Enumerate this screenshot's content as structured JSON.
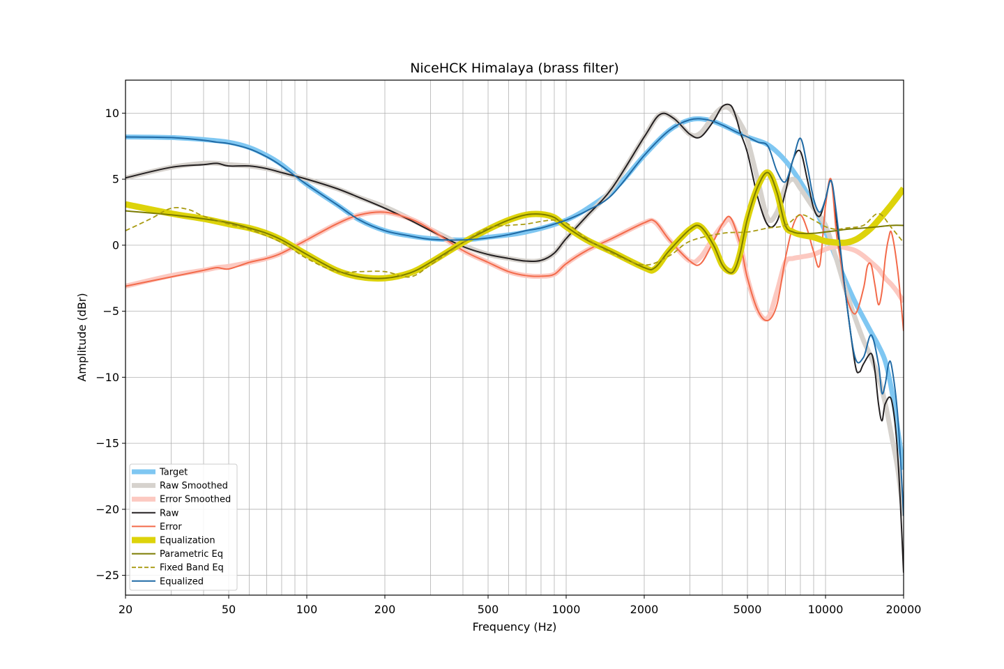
{
  "chart_data": {
    "type": "line",
    "title": "NiceHCK Himalaya (brass filter)",
    "xlabel": "Frequency (Hz)",
    "ylabel": "Amplitude (dBr)",
    "x_scale": "log",
    "xlim": [
      20,
      20000
    ],
    "ylim": [
      -26.5,
      12.5
    ],
    "grid": true,
    "legend_position": "lower-left",
    "x_ticks": [
      {
        "value": 20,
        "label": "20"
      },
      {
        "value": 50,
        "label": "50"
      },
      {
        "value": 100,
        "label": "100"
      },
      {
        "value": 200,
        "label": "200"
      },
      {
        "value": 500,
        "label": "500"
      },
      {
        "value": 1000,
        "label": "1000"
      },
      {
        "value": 2000,
        "label": "2000"
      },
      {
        "value": 5000,
        "label": "5000"
      },
      {
        "value": 10000,
        "label": "10000"
      },
      {
        "value": 20000,
        "label": "20000"
      }
    ],
    "y_ticks": [
      {
        "value": 10,
        "label": "10"
      },
      {
        "value": 5,
        "label": "5"
      },
      {
        "value": 0,
        "label": "0"
      },
      {
        "value": -5,
        "label": "−5"
      },
      {
        "value": -10,
        "label": "−10"
      },
      {
        "value": -15,
        "label": "−15"
      },
      {
        "value": -20,
        "label": "−20"
      },
      {
        "value": -25,
        "label": "−25"
      }
    ],
    "series": [
      {
        "name": "Target",
        "color": "#7fc7f2",
        "style": "thick",
        "x": [
          20,
          30,
          40,
          50,
          60,
          70,
          80,
          100,
          130,
          160,
          200,
          250,
          300,
          400,
          500,
          700,
          1000,
          1300,
          1600,
          2000,
          2500,
          3000,
          3500,
          4000,
          5000,
          6000,
          7000,
          8000,
          9000,
          10000,
          11000,
          12000,
          13000,
          14000,
          15000,
          16000,
          17000,
          18000,
          19000,
          20000
        ],
        "y": [
          8.2,
          8.15,
          8.0,
          7.8,
          7.4,
          6.8,
          6.1,
          4.6,
          3.1,
          1.9,
          1.1,
          0.7,
          0.5,
          0.4,
          0.6,
          1.0,
          1.9,
          3.2,
          4.6,
          6.8,
          8.7,
          9.5,
          9.5,
          9.1,
          8.2,
          7.6,
          6.4,
          4.8,
          3.0,
          1.0,
          -1.0,
          -2.8,
          -4.3,
          -5.5,
          -6.6,
          -7.6,
          -8.8,
          -11.0,
          -14.0,
          -17.0
        ]
      },
      {
        "name": "Raw Smoothed",
        "color": "#d6d2cd",
        "style": "thick",
        "x": [
          20,
          30,
          40,
          45,
          50,
          60,
          70,
          80,
          100,
          130,
          160,
          200,
          250,
          300,
          400,
          500,
          600,
          700,
          800,
          900,
          1000,
          1200,
          1500,
          2000,
          2300,
          2600,
          3000,
          3300,
          3700,
          4000,
          4300,
          4700,
          5000,
          5500,
          6000,
          6500,
          7000,
          7500,
          8000,
          9000,
          10000,
          11000,
          12000,
          13000,
          14000,
          15000,
          16000,
          17000,
          18000,
          19000,
          20000
        ],
        "y": [
          5.1,
          5.9,
          6.2,
          6.2,
          6.1,
          6.0,
          5.8,
          5.5,
          5.0,
          4.3,
          3.6,
          2.9,
          2.0,
          1.2,
          0.0,
          -0.7,
          -1.0,
          -1.2,
          -1.15,
          -0.6,
          0.5,
          2.2,
          4.3,
          8.2,
          9.9,
          9.6,
          8.4,
          8.5,
          9.8,
          10.4,
          10.3,
          9.2,
          8.0,
          4.8,
          2.0,
          2.5,
          4.4,
          5.0,
          4.3,
          2.8,
          1.5,
          -1.0,
          -3.5,
          -5.5,
          -7.2,
          -8.5,
          -10.0,
          -12.0,
          -14.5,
          -17.0,
          -20.5
        ]
      },
      {
        "name": "Error Smoothed",
        "color": "#fcc9c1",
        "style": "thick",
        "x": [
          20,
          30,
          40,
          45,
          50,
          60,
          70,
          80,
          100,
          130,
          160,
          200,
          250,
          300,
          400,
          500,
          600,
          700,
          800,
          900,
          1000,
          1200,
          1500,
          2000,
          2200,
          2500,
          3000,
          3300,
          3700,
          4000,
          4300,
          4700,
          5000,
          5500,
          6000,
          6500,
          7000,
          7500,
          8000,
          9000,
          10000,
          11000,
          12000,
          13000,
          14000,
          15000,
          16000,
          17000,
          18000,
          19000,
          20000
        ],
        "y": [
          -3.1,
          -2.3,
          -1.9,
          -1.7,
          -1.6,
          -1.3,
          -1.0,
          -0.6,
          0.4,
          1.6,
          2.3,
          2.5,
          2.0,
          1.2,
          -0.4,
          -1.3,
          -2.0,
          -2.3,
          -2.35,
          -2.2,
          -1.4,
          -0.4,
          0.5,
          1.7,
          1.75,
          0.4,
          -1.2,
          -0.9,
          0.6,
          1.5,
          1.9,
          0.0,
          -2.5,
          -5.0,
          -5.5,
          -3.5,
          -1.3,
          -1.0,
          -0.9,
          -0.7,
          -0.3,
          -0.1,
          -0.2,
          -0.4,
          -0.8,
          -1.3,
          -1.8,
          -2.5,
          -3.0,
          -3.6,
          -4.3
        ]
      },
      {
        "name": "Raw",
        "color": "#231f20",
        "style": "line",
        "x": [
          20,
          30,
          40,
          45,
          50,
          60,
          70,
          80,
          100,
          130,
          160,
          200,
          250,
          300,
          400,
          500,
          600,
          700,
          800,
          900,
          1000,
          1200,
          1500,
          2000,
          2300,
          2600,
          3000,
          3300,
          3700,
          4000,
          4300,
          4500,
          4700,
          5000,
          5500,
          6000,
          6500,
          7000,
          7500,
          8000,
          8500,
          9000,
          9500,
          10000,
          10500,
          11000,
          12000,
          13000,
          13500,
          14000,
          15000,
          15500,
          16000,
          16500,
          17000,
          18000,
          19000,
          20000
        ],
        "y": [
          5.1,
          5.9,
          6.1,
          6.2,
          6.0,
          6.0,
          5.8,
          5.5,
          5.0,
          4.3,
          3.6,
          2.8,
          1.9,
          1.1,
          -0.1,
          -0.7,
          -1.0,
          -1.2,
          -1.15,
          -0.6,
          0.5,
          2.2,
          4.3,
          8.2,
          9.9,
          9.6,
          8.4,
          8.2,
          9.4,
          10.5,
          10.6,
          9.8,
          8.5,
          7.0,
          3.5,
          1.5,
          1.8,
          4.0,
          6.5,
          7.1,
          5.0,
          2.8,
          2.2,
          3.5,
          4.9,
          2.0,
          -4.0,
          -9.0,
          -9.6,
          -9.0,
          -8.2,
          -9.5,
          -12.0,
          -13.3,
          -12.0,
          -11.8,
          -16.0,
          -24.8
        ]
      },
      {
        "name": "Error",
        "color": "#f36a4a",
        "style": "line",
        "x": [
          20,
          30,
          40,
          45,
          50,
          60,
          70,
          80,
          100,
          130,
          160,
          200,
          250,
          300,
          400,
          500,
          600,
          700,
          800,
          900,
          1000,
          1200,
          1500,
          2000,
          2200,
          2500,
          3000,
          3300,
          3700,
          4000,
          4300,
          4700,
          5000,
          5500,
          6000,
          6500,
          7000,
          7500,
          8000,
          8500,
          9000,
          9500,
          10000,
          10500,
          11000,
          11500,
          12000,
          13000,
          14000,
          14500,
          15000,
          15500,
          16000,
          16500,
          17000,
          17500,
          18000,
          19000,
          20000
        ],
        "y": [
          -3.1,
          -2.4,
          -1.9,
          -1.7,
          -1.8,
          -1.3,
          -1.0,
          -0.6,
          0.4,
          1.6,
          2.3,
          2.5,
          2.0,
          1.2,
          -0.4,
          -1.3,
          -2.0,
          -2.3,
          -2.35,
          -2.2,
          -1.4,
          -0.4,
          0.5,
          1.7,
          1.8,
          0.4,
          -1.2,
          -1.4,
          0.3,
          1.6,
          2.1,
          0.0,
          -2.5,
          -5.0,
          -5.7,
          -4.5,
          -1.0,
          1.5,
          2.3,
          1.2,
          -0.5,
          -1.5,
          3.0,
          5.0,
          1.0,
          -1.5,
          -3.8,
          -5.2,
          -3.3,
          -1.6,
          -1.5,
          -3.0,
          -4.5,
          -3.5,
          -1.0,
          0.5,
          0.9,
          -2.0,
          -6.5
        ]
      },
      {
        "name": "Equalization",
        "color": "#ddd30a",
        "style": "thick",
        "x": [
          20,
          30,
          40,
          50,
          60,
          70,
          80,
          100,
          130,
          160,
          200,
          250,
          300,
          400,
          500,
          600,
          700,
          800,
          900,
          1000,
          1200,
          1500,
          2000,
          2200,
          2500,
          3000,
          3300,
          3700,
          4000,
          4300,
          4500,
          4700,
          5000,
          5500,
          6000,
          6500,
          7000,
          7500,
          8000,
          9000,
          10000,
          11000,
          12000,
          13000,
          14000,
          15000,
          16000,
          17000,
          18000,
          19000,
          20000
        ],
        "y": [
          3.1,
          2.4,
          2.0,
          1.6,
          1.3,
          0.9,
          0.4,
          -0.7,
          -1.9,
          -2.4,
          -2.5,
          -2.1,
          -1.3,
          0.2,
          1.2,
          1.9,
          2.3,
          2.35,
          2.1,
          1.4,
          0.4,
          -0.5,
          -1.7,
          -1.8,
          -0.4,
          1.2,
          1.4,
          0.0,
          -1.5,
          -2.0,
          -1.7,
          -0.5,
          2.0,
          4.5,
          5.5,
          4.0,
          1.5,
          1.0,
          0.8,
          0.6,
          0.3,
          0.2,
          0.2,
          0.4,
          0.8,
          1.3,
          1.9,
          2.5,
          3.1,
          3.7,
          4.3
        ]
      },
      {
        "name": "Parametric Eq",
        "color": "#7b7b00",
        "style": "line",
        "x": [
          20,
          30,
          40,
          50,
          60,
          70,
          80,
          100,
          130,
          160,
          200,
          250,
          300,
          400,
          500,
          600,
          700,
          800,
          900,
          1000,
          1200,
          1500,
          2000,
          2200,
          2500,
          3000,
          3300,
          3700,
          4000,
          4300,
          4500,
          4700,
          5000,
          5500,
          6000,
          6500,
          7000,
          7500,
          8000,
          9000,
          10000,
          11000,
          12000,
          14000,
          16000,
          18000,
          20000
        ],
        "y": [
          2.6,
          2.3,
          2.0,
          1.7,
          1.3,
          0.9,
          0.4,
          -0.7,
          -1.9,
          -2.4,
          -2.5,
          -2.1,
          -1.3,
          0.2,
          1.2,
          1.9,
          2.3,
          2.35,
          2.1,
          1.4,
          0.4,
          -0.5,
          -1.7,
          -1.7,
          -0.4,
          1.2,
          1.4,
          0.0,
          -1.5,
          -2.1,
          -1.7,
          -0.5,
          2.0,
          4.5,
          5.5,
          4.0,
          1.5,
          1.0,
          0.9,
          0.9,
          1.0,
          1.1,
          1.2,
          1.3,
          1.4,
          1.5,
          1.5
        ]
      },
      {
        "name": "Fixed Band Eq",
        "color": "#a89a10",
        "style": "dashed",
        "x": [
          20,
          25,
          30,
          35,
          40,
          50,
          60,
          80,
          100,
          130,
          160,
          200,
          250,
          300,
          400,
          500,
          600,
          700,
          800,
          900,
          1000,
          1200,
          1500,
          2000,
          2500,
          3000,
          4000,
          5000,
          6000,
          7000,
          8000,
          9000,
          10000,
          11000,
          12000,
          14000,
          16000,
          18000,
          20000
        ],
        "y": [
          1.1,
          2.0,
          2.8,
          2.7,
          2.2,
          1.6,
          1.2,
          0.2,
          -1.0,
          -2.0,
          -2.0,
          -2.0,
          -2.4,
          -1.5,
          0.2,
          1.3,
          1.5,
          1.6,
          1.8,
          1.9,
          1.7,
          0.5,
          -0.6,
          -1.5,
          -0.8,
          0.3,
          0.9,
          1.0,
          1.3,
          1.5,
          2.3,
          1.9,
          1.4,
          1.2,
          1.3,
          1.5,
          2.4,
          1.3,
          0.2
        ]
      },
      {
        "name": "Equalized",
        "color": "#1f6aa5",
        "style": "line",
        "x": [
          20,
          30,
          40,
          45,
          50,
          60,
          70,
          80,
          100,
          130,
          160,
          200,
          250,
          300,
          400,
          500,
          600,
          700,
          800,
          900,
          1000,
          1200,
          1500,
          2000,
          2500,
          3000,
          3500,
          4000,
          4500,
          5000,
          5500,
          6000,
          6500,
          7000,
          7500,
          8000,
          8500,
          9000,
          9500,
          10000,
          10500,
          11000,
          12000,
          13000,
          14000,
          15000,
          16000,
          16500,
          17000,
          17500,
          18000,
          19000,
          20000
        ],
        "y": [
          8.2,
          8.15,
          7.95,
          7.8,
          7.7,
          7.3,
          6.7,
          6.0,
          4.6,
          3.1,
          1.9,
          1.1,
          0.7,
          0.45,
          0.4,
          0.55,
          0.8,
          1.1,
          1.3,
          1.6,
          1.9,
          2.6,
          3.8,
          6.8,
          8.7,
          9.5,
          9.5,
          9.1,
          8.6,
          8.2,
          7.8,
          7.5,
          5.6,
          4.8,
          6.5,
          8.1,
          6.0,
          3.5,
          2.5,
          3.5,
          4.9,
          2.5,
          -4.0,
          -8.5,
          -8.5,
          -6.8,
          -9.0,
          -11.2,
          -10.5,
          -9.0,
          -9.2,
          -13.0,
          -20.5
        ]
      }
    ]
  }
}
